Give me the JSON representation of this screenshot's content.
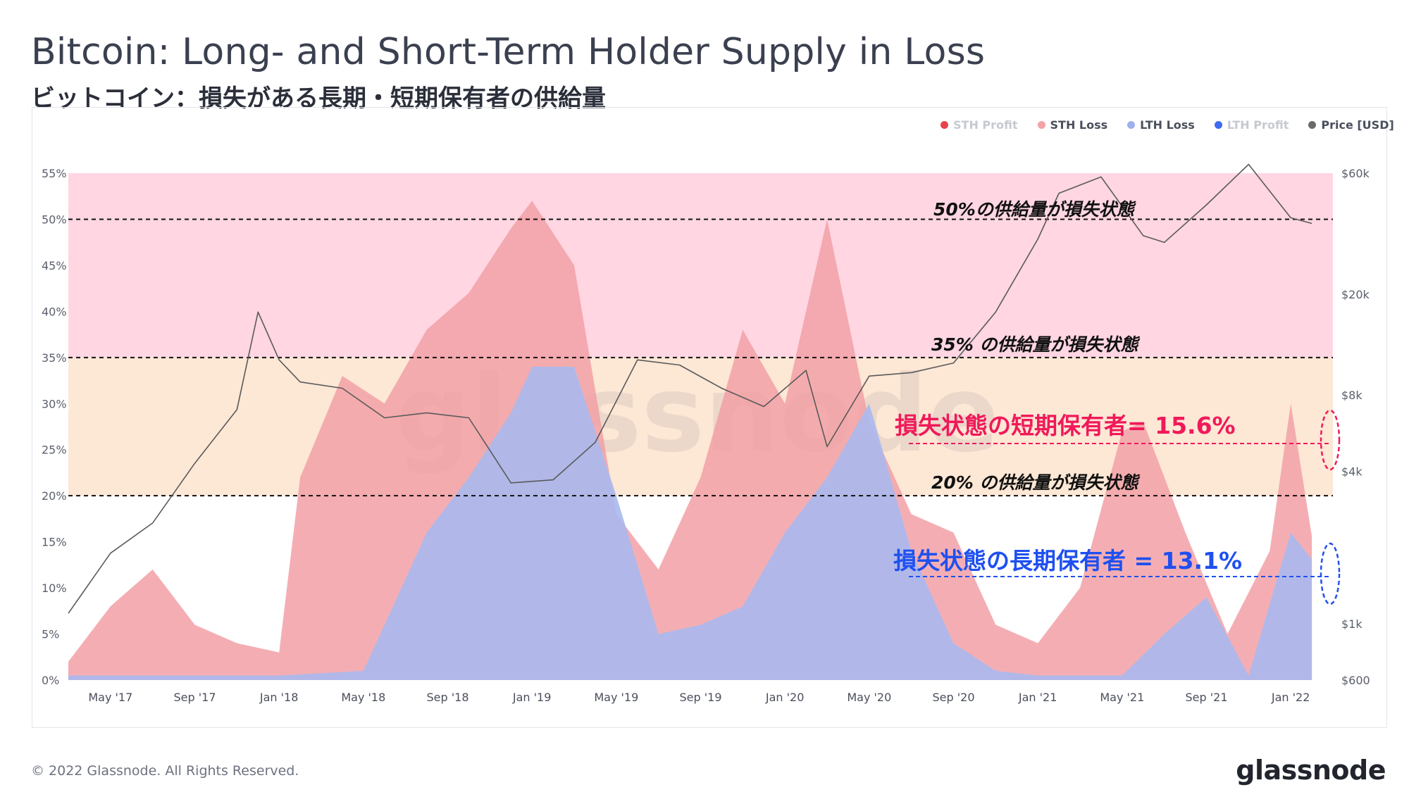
{
  "title": "Bitcoin: Long- and Short-Term Holder Supply in Loss",
  "subtitle": "ビットコイン：損失がある長期・短期保有者の供給量",
  "footer": "© 2022 Glassnode. All Rights Reserved.",
  "brand": "glassnode",
  "watermark": "glassnode",
  "legend": [
    {
      "label": "STH Profit",
      "color": "#e8414f",
      "active": false
    },
    {
      "label": "STH Loss",
      "color": "#f2a3a8",
      "active": true
    },
    {
      "label": "LTH Loss",
      "color": "#9fb0ef",
      "active": true
    },
    {
      "label": "LTH Profit",
      "color": "#3d6af0",
      "active": false
    },
    {
      "label": "Price [USD]",
      "color": "#6b6b6b",
      "active": true
    }
  ],
  "colors": {
    "band_pink": "#ffd6e2",
    "band_peach": "#fde7d5",
    "sth_loss": "#f2a0a6",
    "lth_loss": "#aab9ee",
    "price": "#5a5a5a",
    "sth_annotation": "#f0195a",
    "lth_annotation": "#1f50ef"
  },
  "annotations": {
    "lvl50": "50%の供給量が損失状態",
    "lvl35": "35% の供給量が損失状態",
    "lvl20": "20% の供給量が損失状態",
    "sth": "損失状態の短期保有者= 15.6%",
    "lth": "損失状態の長期保有者 = 13.1%"
  },
  "chart_data": {
    "type": "area",
    "title": "Bitcoin: Long- and Short-Term Holder Supply in Loss",
    "x_range": [
      "2017-03-01",
      "2022-03-01"
    ],
    "x_ticks": [
      "May '17",
      "Sep '17",
      "Jan '18",
      "May '18",
      "Sep '18",
      "Jan '19",
      "May '19",
      "Sep '19",
      "Jan '20",
      "May '20",
      "Sep '20",
      "Jan '21",
      "May '21",
      "Sep '21",
      "Jan '22"
    ],
    "y_left": {
      "ticks": [
        "0%",
        "5%",
        "10%",
        "15%",
        "20%",
        "25%",
        "30%",
        "35%",
        "40%",
        "45%",
        "50%",
        "55%"
      ],
      "range": [
        0,
        55
      ],
      "unit": "%"
    },
    "y_right": {
      "ticks": [
        "$600",
        "$1k",
        "$4k",
        "$8k",
        "$20k",
        "$60k"
      ],
      "scale": "log"
    },
    "reference_levels": [
      20,
      35,
      50
    ],
    "series": [
      {
        "name": "STH Loss",
        "x": [
          "2017-03",
          "2017-05",
          "2017-07",
          "2017-09",
          "2017-11",
          "2018-01",
          "2018-02",
          "2018-04",
          "2018-06",
          "2018-08",
          "2018-10",
          "2018-12",
          "2019-01",
          "2019-03",
          "2019-05",
          "2019-07",
          "2019-09",
          "2019-11",
          "2020-01",
          "2020-03",
          "2020-05",
          "2020-07",
          "2020-09",
          "2020-11",
          "2021-01",
          "2021-03",
          "2021-05",
          "2021-06",
          "2021-08",
          "2021-10",
          "2021-12",
          "2022-01",
          "2022-02"
        ],
        "values": [
          2,
          8,
          12,
          6,
          4,
          3,
          22,
          33,
          30,
          38,
          42,
          49,
          52,
          45,
          18,
          12,
          22,
          38,
          30,
          50,
          28,
          18,
          16,
          6,
          4,
          10,
          27,
          28,
          16,
          5,
          14,
          30,
          15.6
        ]
      },
      {
        "name": "LTH Loss",
        "x": [
          "2017-03",
          "2017-09",
          "2018-01",
          "2018-05",
          "2018-06",
          "2018-08",
          "2018-10",
          "2018-12",
          "2019-01",
          "2019-03",
          "2019-05",
          "2019-07",
          "2019-09",
          "2019-11",
          "2020-01",
          "2020-03",
          "2020-05",
          "2020-07",
          "2020-09",
          "2020-11",
          "2021-01",
          "2021-05",
          "2021-07",
          "2021-09",
          "2021-11",
          "2022-01",
          "2022-02"
        ],
        "values": [
          0.5,
          0.5,
          0.5,
          1,
          6,
          16,
          22,
          29,
          34,
          34,
          20,
          5,
          6,
          8,
          16,
          22,
          30,
          14,
          4,
          1,
          0.5,
          0.5,
          5,
          9,
          0.5,
          16,
          13.1
        ]
      },
      {
        "name": "Price [USD]",
        "x": [
          "2017-03",
          "2017-05",
          "2017-07",
          "2017-09",
          "2017-11",
          "2017-12",
          "2018-01",
          "2018-02",
          "2018-04",
          "2018-06",
          "2018-08",
          "2018-10",
          "2018-12",
          "2019-02",
          "2019-04",
          "2019-06",
          "2019-08",
          "2019-10",
          "2019-12",
          "2020-02",
          "2020-03",
          "2020-05",
          "2020-07",
          "2020-09",
          "2020-11",
          "2021-01",
          "2021-02",
          "2021-04",
          "2021-06",
          "2021-07",
          "2021-09",
          "2021-11",
          "2022-01",
          "2022-02"
        ],
        "values": [
          1100,
          1900,
          2500,
          4300,
          7000,
          17000,
          11000,
          9000,
          8500,
          6500,
          6800,
          6500,
          3600,
          3700,
          5200,
          11000,
          10500,
          8500,
          7200,
          10000,
          5000,
          9500,
          9800,
          10700,
          17000,
          33000,
          50000,
          58000,
          34000,
          32000,
          45000,
          65000,
          40000,
          38000
        ]
      }
    ]
  }
}
